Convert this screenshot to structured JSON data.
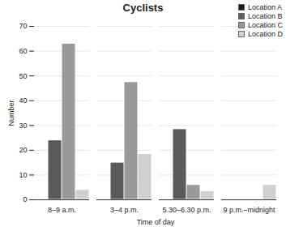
{
  "chart_data": {
    "type": "bar",
    "title": "Cyclists",
    "x_label": "Time of day",
    "y_label": "Number",
    "categories": [
      "8–9 a.m.",
      "3–4 p.m.",
      "5.30–6.30 p.m.",
      "9 p.m.–midnight"
    ],
    "series": [
      {
        "name": "Location A",
        "color": "#1a1a1a",
        "values": [
          0,
          0,
          0,
          0
        ]
      },
      {
        "name": "Location B",
        "color": "#5a5a5a",
        "values": [
          24,
          15,
          28.5,
          0
        ]
      },
      {
        "name": "Location C",
        "color": "#9a9a9a",
        "values": [
          63,
          47.5,
          6,
          0
        ]
      },
      {
        "name": "Location D",
        "color": "#d0d0d0",
        "values": [
          4,
          18.5,
          3.5,
          6
        ]
      }
    ],
    "ylim": [
      0,
      70
    ],
    "yticks": [
      0,
      10,
      20,
      30,
      40,
      50,
      60,
      70
    ],
    "grid": true,
    "legend": "top-right"
  }
}
